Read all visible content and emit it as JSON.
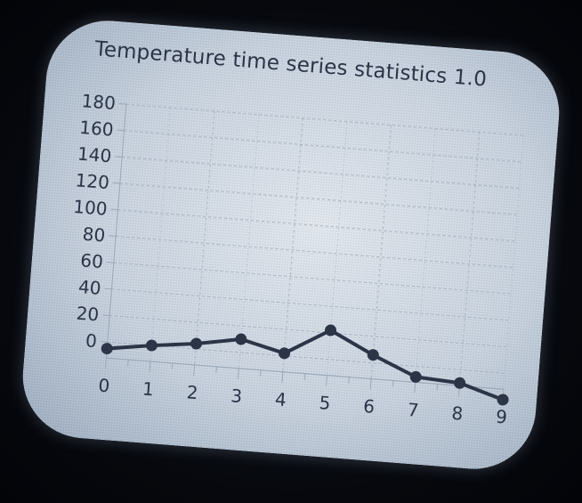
{
  "chart_data": {
    "type": "line",
    "title": "Temperature time series statistics 1.0",
    "xlabel": "",
    "ylabel": "",
    "x": [
      0,
      1,
      2,
      3,
      4,
      5,
      6,
      7,
      8,
      9
    ],
    "series": [
      {
        "values": [
          -5,
          0,
          4,
          10,
          2,
          22,
          6,
          -8,
          -10,
          -20
        ]
      }
    ],
    "xlim": [
      0,
      9
    ],
    "ylim": [
      0,
      180
    ],
    "yticks": [
      0,
      20,
      40,
      60,
      80,
      100,
      120,
      140,
      160,
      180
    ],
    "xticks": [
      0,
      1,
      2,
      3,
      4,
      5,
      6,
      7,
      8,
      9
    ],
    "grid": true,
    "legend": "none",
    "colors": {
      "line": "#2b3547",
      "grid": "#9aa8b8",
      "text": "#2a3446"
    }
  }
}
